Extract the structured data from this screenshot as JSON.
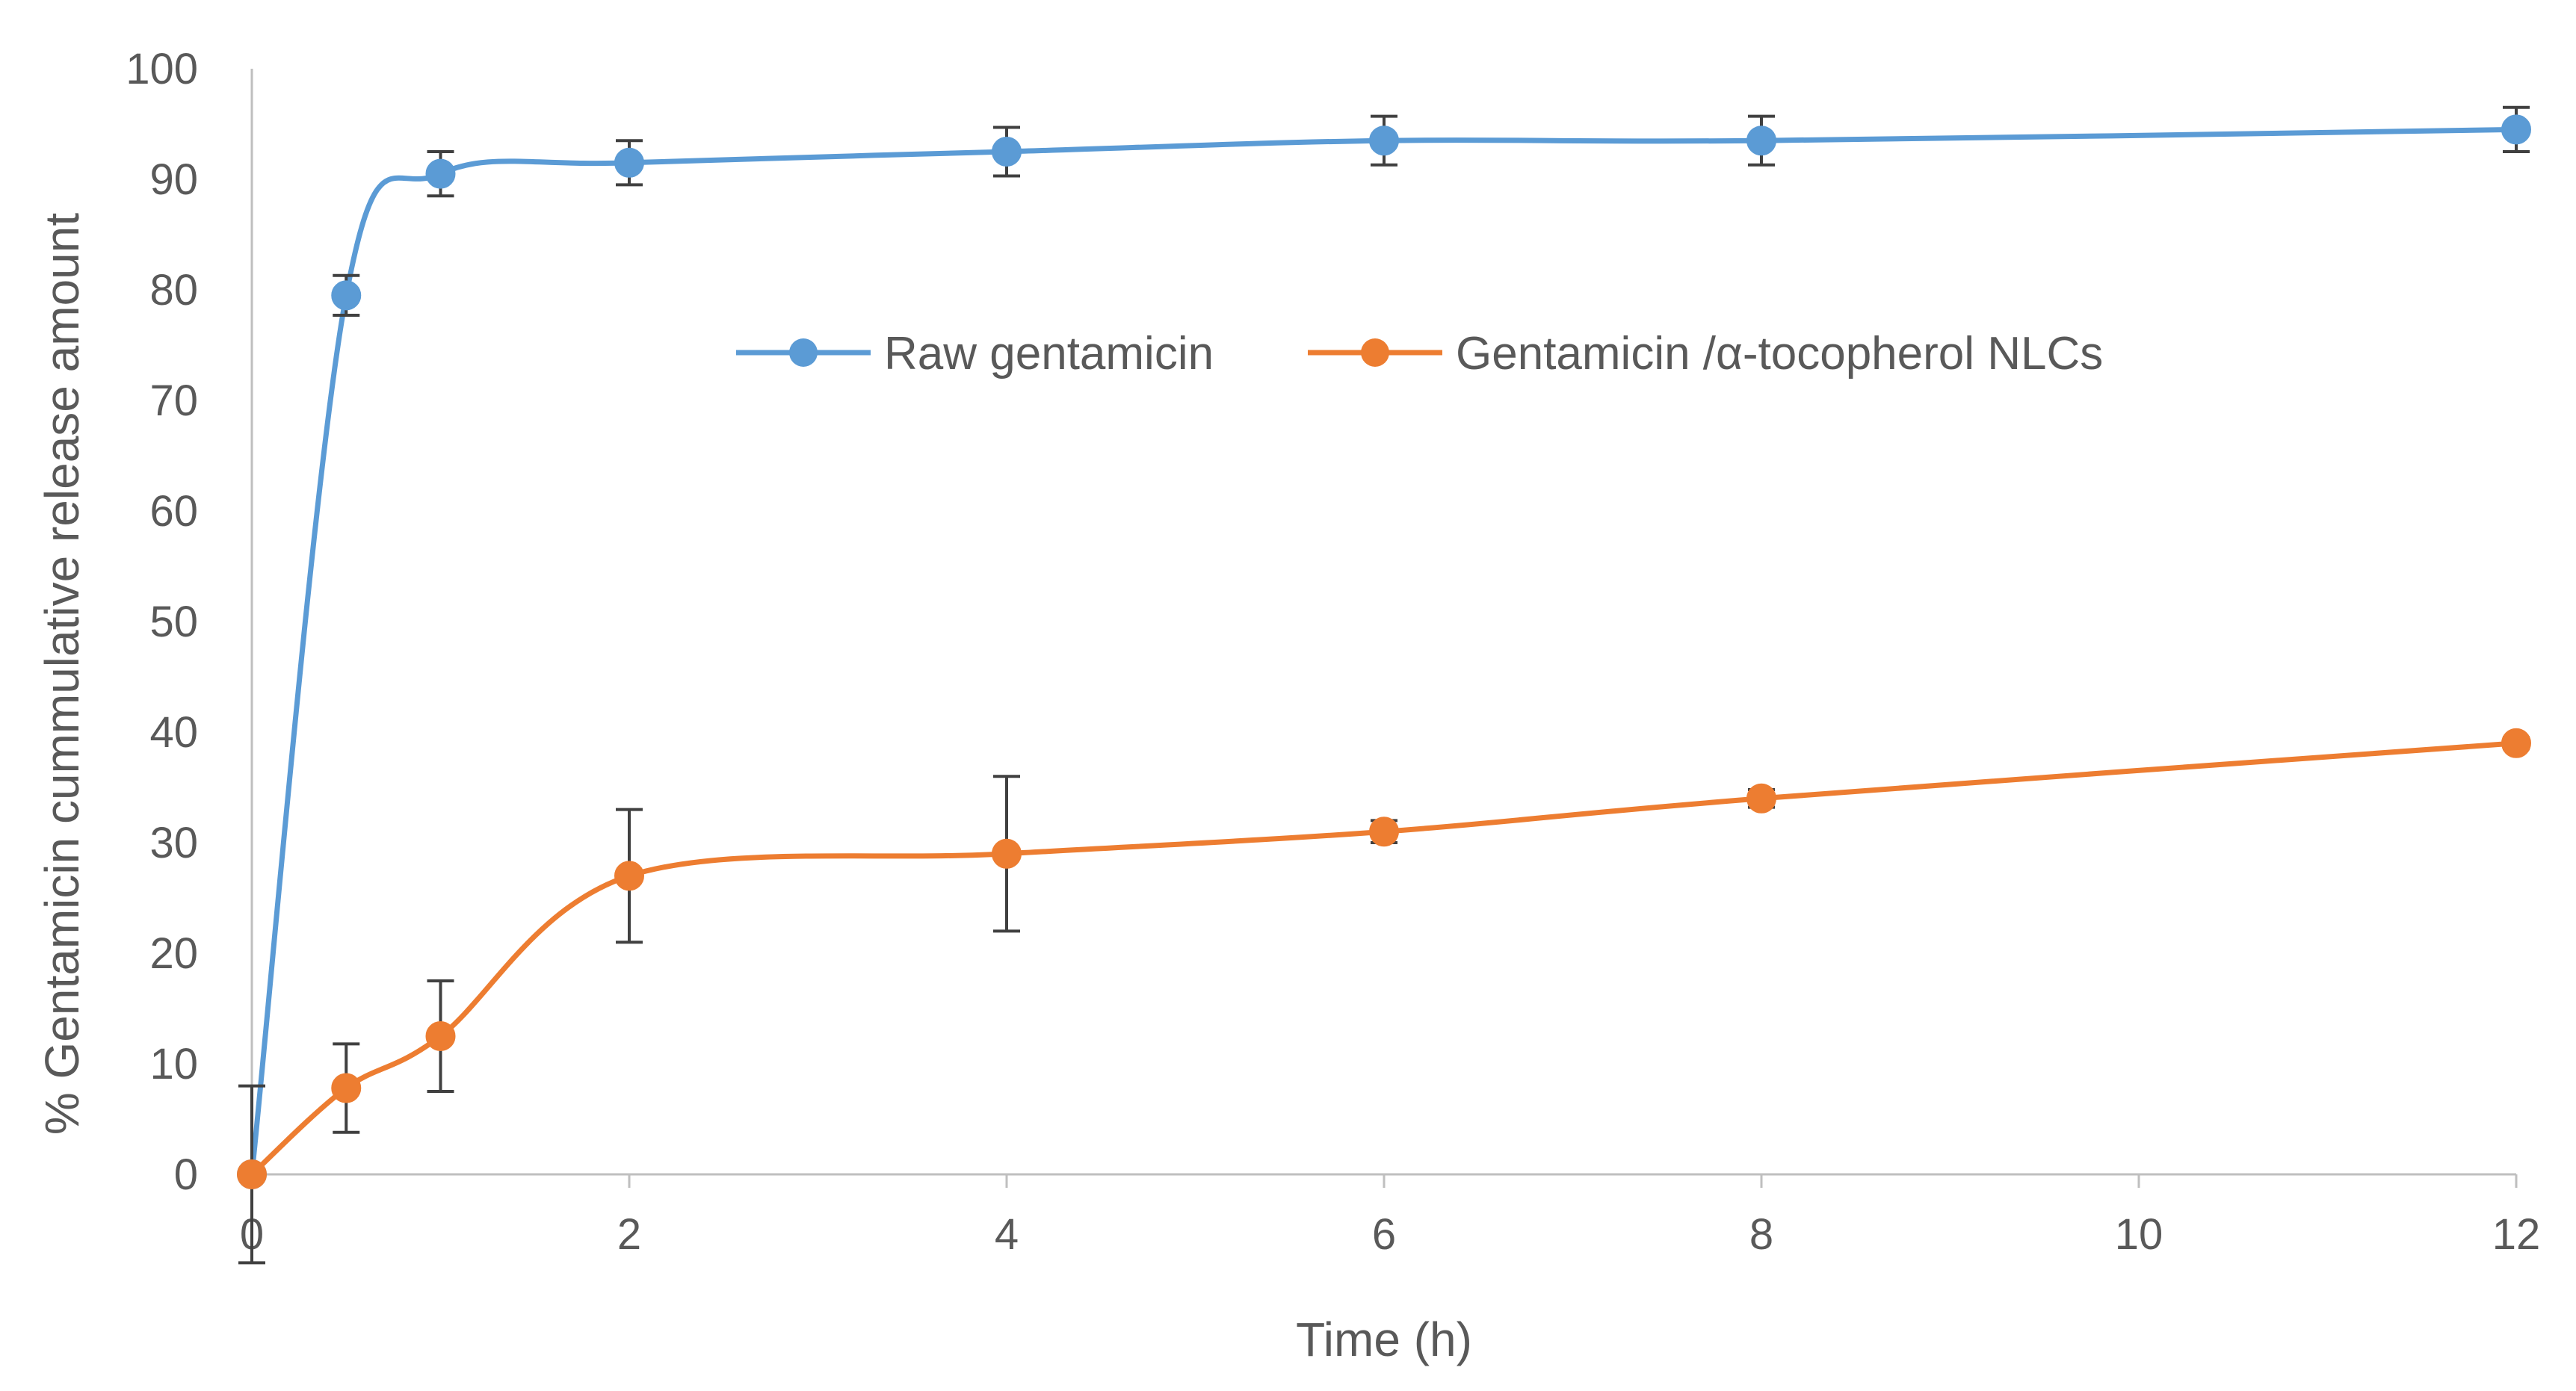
{
  "chart_data": {
    "type": "line",
    "title": "",
    "xlabel": "Time (h)",
    "ylabel": "% Gentamicin cummulative release amount",
    "xlim": [
      0,
      12
    ],
    "ylim": [
      0,
      100
    ],
    "x_ticks": [
      0,
      2,
      4,
      6,
      8,
      10,
      12
    ],
    "y_ticks": [
      0,
      10,
      20,
      30,
      40,
      50,
      60,
      70,
      80,
      90,
      100
    ],
    "grid": false,
    "legend_position": "center-top",
    "series": [
      {
        "name": "Raw gentamicin",
        "color": "#5b9bd5",
        "x": [
          0,
          0.5,
          1,
          2,
          4,
          6,
          8,
          12
        ],
        "values": [
          0,
          79.5,
          90.5,
          91.5,
          92.5,
          93.5,
          93.5,
          94.5
        ],
        "errors": [
          8,
          1.8,
          2,
          2,
          2.2,
          2.2,
          2.2,
          2
        ]
      },
      {
        "name": "Gentamicin /α-tocopherol NLCs",
        "color": "#ed7d31",
        "x": [
          0,
          0.5,
          1,
          2,
          4,
          6,
          8,
          12
        ],
        "values": [
          0,
          7.8,
          12.5,
          27,
          29,
          31,
          34,
          39
        ],
        "errors": [
          0,
          4,
          5,
          6,
          7,
          1,
          0.8,
          0.5
        ]
      }
    ]
  }
}
